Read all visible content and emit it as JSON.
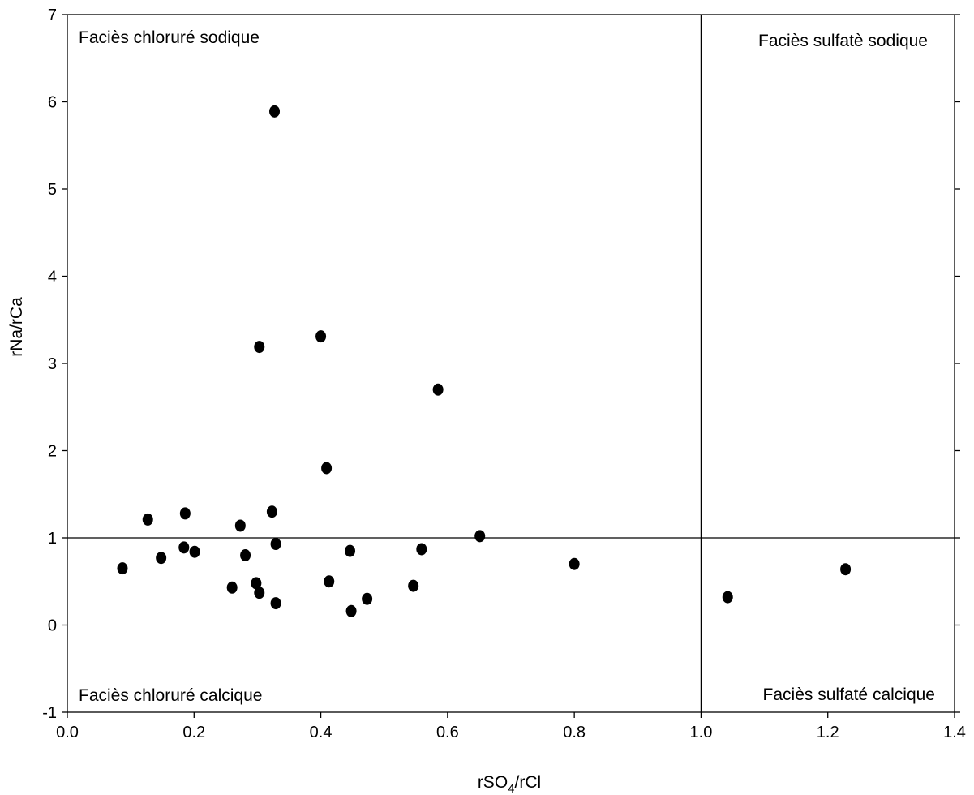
{
  "chart_data": {
    "type": "scatter",
    "title": "",
    "xlabel": {
      "prefix": "rSO",
      "subscript": "4",
      "suffix": "/rCl"
    },
    "ylabel": "rNa/rCa",
    "xlim": [
      0.0,
      1.4
    ],
    "ylim": [
      -1,
      7
    ],
    "x_ticks": [
      "0.0",
      "0.2",
      "0.4",
      "0.6",
      "0.8",
      "1.0",
      "1.2",
      "1.4"
    ],
    "y_ticks": [
      "-1",
      "0",
      "1",
      "2",
      "3",
      "4",
      "5",
      "6",
      "7"
    ],
    "grid": false,
    "reference_lines": {
      "x": 1.0,
      "y": 1.0
    },
    "quadrant_labels": {
      "top_left": "Faciès chloruré sodique",
      "top_right": "Faciès sulfatè sodique",
      "bottom_left": "Faciès chloruré calcique",
      "bottom_right": "Faciès sulfaté calcique"
    },
    "marker_color": "#000000",
    "points": [
      {
        "x": 0.327,
        "y": 5.89
      },
      {
        "x": 0.4,
        "y": 3.31
      },
      {
        "x": 0.303,
        "y": 3.19
      },
      {
        "x": 0.585,
        "y": 2.7
      },
      {
        "x": 0.409,
        "y": 1.8
      },
      {
        "x": 0.323,
        "y": 1.3
      },
      {
        "x": 0.186,
        "y": 1.28
      },
      {
        "x": 0.127,
        "y": 1.21
      },
      {
        "x": 0.273,
        "y": 1.14
      },
      {
        "x": 0.651,
        "y": 1.02
      },
      {
        "x": 0.329,
        "y": 0.93
      },
      {
        "x": 0.184,
        "y": 0.89
      },
      {
        "x": 0.559,
        "y": 0.87
      },
      {
        "x": 0.446,
        "y": 0.85
      },
      {
        "x": 0.201,
        "y": 0.84
      },
      {
        "x": 0.281,
        "y": 0.8
      },
      {
        "x": 0.148,
        "y": 0.77
      },
      {
        "x": 0.8,
        "y": 0.7
      },
      {
        "x": 0.087,
        "y": 0.65
      },
      {
        "x": 1.228,
        "y": 0.64
      },
      {
        "x": 0.413,
        "y": 0.5
      },
      {
        "x": 0.298,
        "y": 0.48
      },
      {
        "x": 0.546,
        "y": 0.45
      },
      {
        "x": 0.26,
        "y": 0.43
      },
      {
        "x": 0.303,
        "y": 0.37
      },
      {
        "x": 1.042,
        "y": 0.32
      },
      {
        "x": 0.473,
        "y": 0.3
      },
      {
        "x": 0.329,
        "y": 0.25
      },
      {
        "x": 0.448,
        "y": 0.16
      }
    ]
  }
}
